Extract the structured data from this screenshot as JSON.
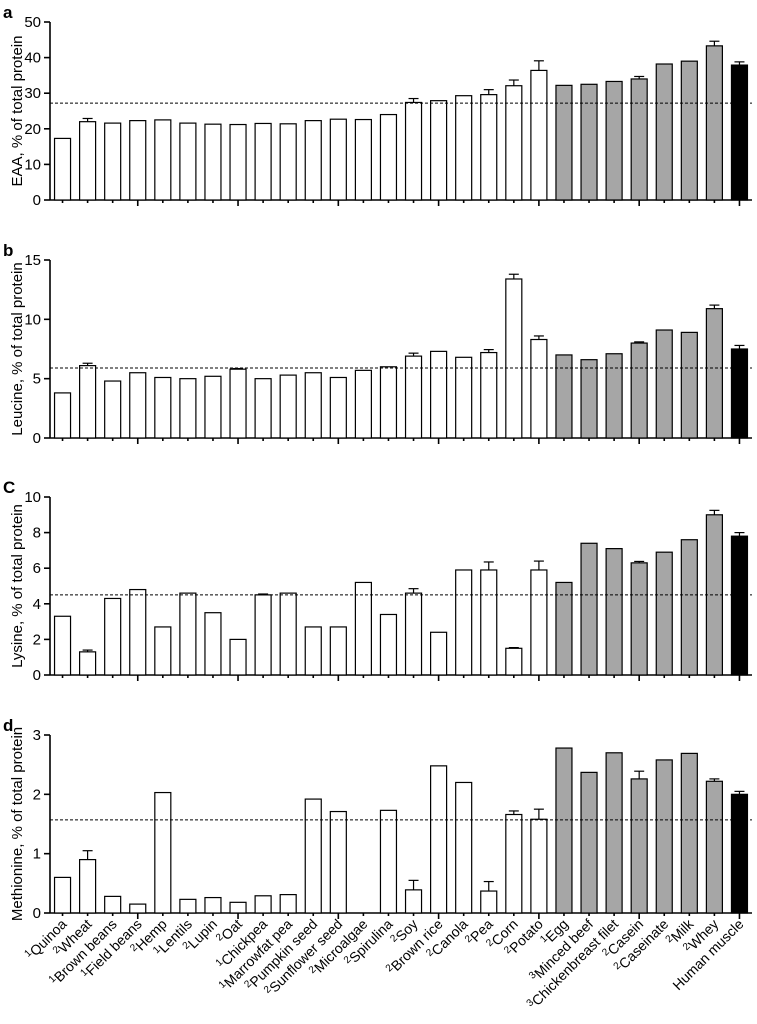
{
  "colors": {
    "plant": "#ffffff",
    "animal": "#a6a6a6",
    "human": "#000000"
  },
  "categories": [
    {
      "sup": "1",
      "name": "Quinoa",
      "group": "plant"
    },
    {
      "sup": "2",
      "name": "Wheat",
      "group": "plant"
    },
    {
      "sup": "1",
      "name": "Brown beans",
      "group": "plant"
    },
    {
      "sup": "1",
      "name": "Field beans",
      "group": "plant"
    },
    {
      "sup": "2",
      "name": "Hemp",
      "group": "plant"
    },
    {
      "sup": "1",
      "name": "Lentils",
      "group": "plant"
    },
    {
      "sup": "2",
      "name": "Lupin",
      "group": "plant"
    },
    {
      "sup": "2",
      "name": "Oat",
      "group": "plant"
    },
    {
      "sup": "1",
      "name": "Chickpea",
      "group": "plant"
    },
    {
      "sup": "1",
      "name": "Marrowfat pea",
      "group": "plant"
    },
    {
      "sup": "2",
      "name": "Pumpkin seed",
      "group": "plant"
    },
    {
      "sup": "2",
      "name": "Sunflower seed",
      "group": "plant"
    },
    {
      "sup": "2",
      "name": "Microalgae",
      "group": "plant"
    },
    {
      "sup": "2",
      "name": "Spirulina",
      "group": "plant"
    },
    {
      "sup": "2",
      "name": "Soy",
      "group": "plant"
    },
    {
      "sup": "2",
      "name": "Brown rice",
      "group": "plant"
    },
    {
      "sup": "2",
      "name": "Canola",
      "group": "plant"
    },
    {
      "sup": "2",
      "name": "Pea",
      "group": "plant"
    },
    {
      "sup": "2",
      "name": "Corn",
      "group": "plant"
    },
    {
      "sup": "2",
      "name": "Potato",
      "group": "plant"
    },
    {
      "sup": "1",
      "name": "Egg",
      "group": "animal"
    },
    {
      "sup": "3",
      "name": "Minced beef",
      "group": "animal"
    },
    {
      "sup": "3",
      "name": "Chickenbreast filet",
      "group": "animal"
    },
    {
      "sup": "2",
      "name": "Casein",
      "group": "animal"
    },
    {
      "sup": "2",
      "name": "Caseinate",
      "group": "animal"
    },
    {
      "sup": "2",
      "name": "Milk",
      "group": "animal"
    },
    {
      "sup": "2",
      "name": "Whey",
      "group": "animal"
    },
    {
      "sup": "",
      "name": "Human muscle",
      "group": "human"
    }
  ],
  "chart_data": [
    {
      "type": "bar",
      "panel": "a",
      "ylabel": "EAA, % of total protein",
      "ylim": [
        0,
        50
      ],
      "yticks": [
        0,
        10,
        20,
        30,
        40,
        50
      ],
      "reference_line": 27.2,
      "values": [
        17.3,
        22.0,
        21.6,
        22.3,
        22.5,
        21.6,
        21.3,
        21.2,
        21.5,
        21.4,
        22.3,
        22.7,
        22.6,
        24.0,
        27.4,
        27.9,
        29.3,
        29.6,
        32.1,
        36.4,
        32.2,
        32.5,
        33.3,
        34.0,
        38.2,
        39.0,
        43.3,
        37.9
      ],
      "errors": [
        0,
        0.9,
        0,
        0,
        0,
        0,
        0,
        0,
        0,
        0,
        0,
        0,
        0,
        0,
        1.1,
        0,
        0,
        1.4,
        1.6,
        2.7,
        0,
        0,
        0,
        0.7,
        0,
        0,
        1.3,
        0.9
      ]
    },
    {
      "type": "bar",
      "panel": "b",
      "ylabel": "Leucine, % of total protein",
      "ylim": [
        0,
        15
      ],
      "yticks": [
        0,
        5,
        10,
        15
      ],
      "reference_line": 5.9,
      "values": [
        3.8,
        6.1,
        4.8,
        5.5,
        5.1,
        5.0,
        5.2,
        5.8,
        5.0,
        5.3,
        5.5,
        5.1,
        5.7,
        6.0,
        6.9,
        7.3,
        6.8,
        7.2,
        13.4,
        8.3,
        7.0,
        6.6,
        7.1,
        8.0,
        9.1,
        8.9,
        10.9,
        7.5
      ],
      "errors": [
        0,
        0.2,
        0,
        0,
        0,
        0,
        0,
        0.05,
        0,
        0,
        0,
        0,
        0,
        0,
        0.25,
        0,
        0,
        0.25,
        0.4,
        0.3,
        0,
        0,
        0,
        0.1,
        0,
        0,
        0.3,
        0.3
      ]
    },
    {
      "type": "bar",
      "panel": "C",
      "ylabel": "Lysine, % of total protein",
      "ylim": [
        0,
        10
      ],
      "yticks": [
        0,
        2,
        4,
        6,
        8,
        10
      ],
      "reference_line": 4.5,
      "values": [
        3.3,
        1.3,
        4.3,
        4.8,
        2.7,
        4.6,
        3.5,
        2.0,
        4.5,
        4.6,
        2.7,
        2.7,
        5.2,
        3.4,
        4.6,
        2.4,
        5.9,
        5.9,
        1.5,
        5.9,
        5.2,
        7.4,
        7.1,
        6.3,
        6.9,
        7.6,
        9.0,
        7.8
      ],
      "errors": [
        0,
        0.1,
        0,
        0,
        0,
        0,
        0,
        0,
        0.05,
        0,
        0,
        0,
        0,
        0,
        0.25,
        0,
        0,
        0.45,
        0.04,
        0.5,
        0,
        0,
        0,
        0.08,
        0,
        0,
        0.25,
        0.2
      ]
    },
    {
      "type": "bar",
      "panel": "d",
      "ylabel": "Methionine, % of total protein",
      "ylim": [
        0,
        3
      ],
      "yticks": [
        0,
        1,
        2,
        3
      ],
      "reference_line": 1.57,
      "values": [
        0.6,
        0.9,
        0.28,
        0.15,
        2.03,
        0.23,
        0.26,
        0.18,
        0.29,
        0.31,
        1.92,
        1.71,
        0,
        1.73,
        0.39,
        2.48,
        2.2,
        0.37,
        1.66,
        1.58,
        2.78,
        2.37,
        2.7,
        2.26,
        2.58,
        2.69,
        2.22,
        2.0
      ],
      "errors": [
        0,
        0.15,
        0,
        0,
        0,
        0,
        0,
        0,
        0,
        0,
        0,
        0,
        0,
        0,
        0.16,
        0,
        0,
        0.16,
        0.06,
        0.17,
        0,
        0,
        0,
        0.13,
        0,
        0,
        0.04,
        0.05
      ]
    }
  ]
}
